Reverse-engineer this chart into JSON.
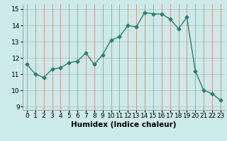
{
  "x": [
    0,
    1,
    2,
    3,
    4,
    5,
    6,
    7,
    8,
    9,
    10,
    11,
    12,
    13,
    14,
    15,
    16,
    17,
    18,
    19,
    20,
    21,
    22,
    23
  ],
  "y": [
    11.6,
    11.0,
    10.8,
    11.3,
    11.4,
    11.7,
    11.8,
    12.3,
    11.6,
    12.2,
    13.1,
    13.3,
    14.0,
    13.9,
    14.8,
    14.7,
    14.7,
    14.4,
    13.8,
    14.5,
    11.2,
    10.0,
    9.8,
    9.4
  ],
  "line_color": "#2e7d6e",
  "marker": "D",
  "markersize": 2.5,
  "linewidth": 1.0,
  "bg_color": "#cceae7",
  "hgrid_color": "#aad4d0",
  "vgrid_color": "#e08080",
  "xlabel": "Humidex (Indice chaleur)",
  "xlabel_fontsize": 7.5,
  "ylabel_ticks": [
    9,
    10,
    11,
    12,
    13,
    14,
    15
  ],
  "xlim": [
    -0.5,
    23.5
  ],
  "ylim": [
    8.8,
    15.3
  ],
  "tick_fontsize": 6.5
}
